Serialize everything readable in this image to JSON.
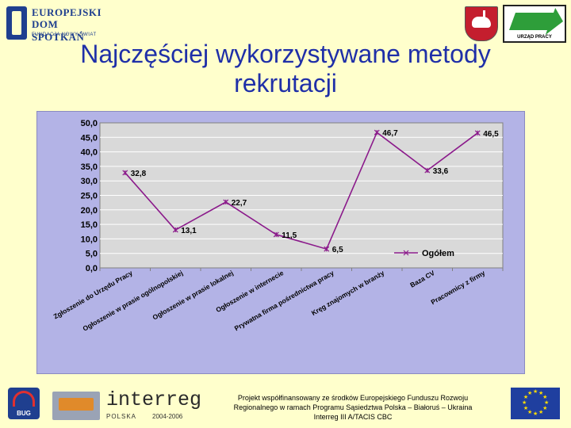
{
  "header": {
    "logo_left": {
      "line1": "EUROPEJSKI",
      "line2": "DOM SPOTKAŃ",
      "line3": "FUNDACJA NOWY ŚWIAT"
    },
    "logo_right_caption": "URZĄD PRACY",
    "icons": [
      "ed-logo-icon",
      "lublin-crest-icon",
      "urzad-pracy-logo-icon"
    ]
  },
  "title_line1": "Najczęściej wykorzystywane metody",
  "title_line2": "rekrutacji",
  "chart_data": {
    "type": "line",
    "categories": [
      "Zgłoszenie do Urzędu Pracy",
      "Ogłoszenie w prasie ogólnopolskiej",
      "Ogłoszenie w prasie lokalnej",
      "Ogłoszenie w internecie",
      "Prywatna firma pośrednictwa pracy",
      "Kręg znajomych w branży",
      "Baza CV",
      "Pracownicy z firmy"
    ],
    "series": [
      {
        "name": "Ogółem",
        "values": [
          32.8,
          13.1,
          22.7,
          11.5,
          6.5,
          46.7,
          33.6,
          46.5
        ],
        "labels": [
          "32,8",
          "13,1",
          "22,7",
          "11,5",
          "6,5",
          "46,7",
          "33,6",
          "46,5"
        ],
        "color": "#8b1a8b"
      }
    ],
    "ylim": [
      0,
      50
    ],
    "yticks": [
      "0,0",
      "5,0",
      "10,0",
      "15,0",
      "20,0",
      "25,0",
      "30,0",
      "35,0",
      "40,0",
      "45,0",
      "50,0"
    ],
    "grid": true,
    "legend_position": "bottom-right",
    "colors": {
      "plot_bg": "#d9d9d9",
      "frame_bg": "#b3b3e6",
      "gridline": "#ffffff",
      "text": "#000000"
    }
  },
  "footer": {
    "line1": "Projekt współfinansowany ze środków Europejskiego Funduszu Rozwoju",
    "line2": "Regionalnego w ramach Programu Sąsiedztwa Polska – Białoruś – Ukraina",
    "line3": "Interreg III A/TACIS CBC",
    "bug_label": "BUG",
    "interreg_word": "interreg",
    "interreg_country": "POLSKA",
    "interreg_years": "2004-2006"
  }
}
